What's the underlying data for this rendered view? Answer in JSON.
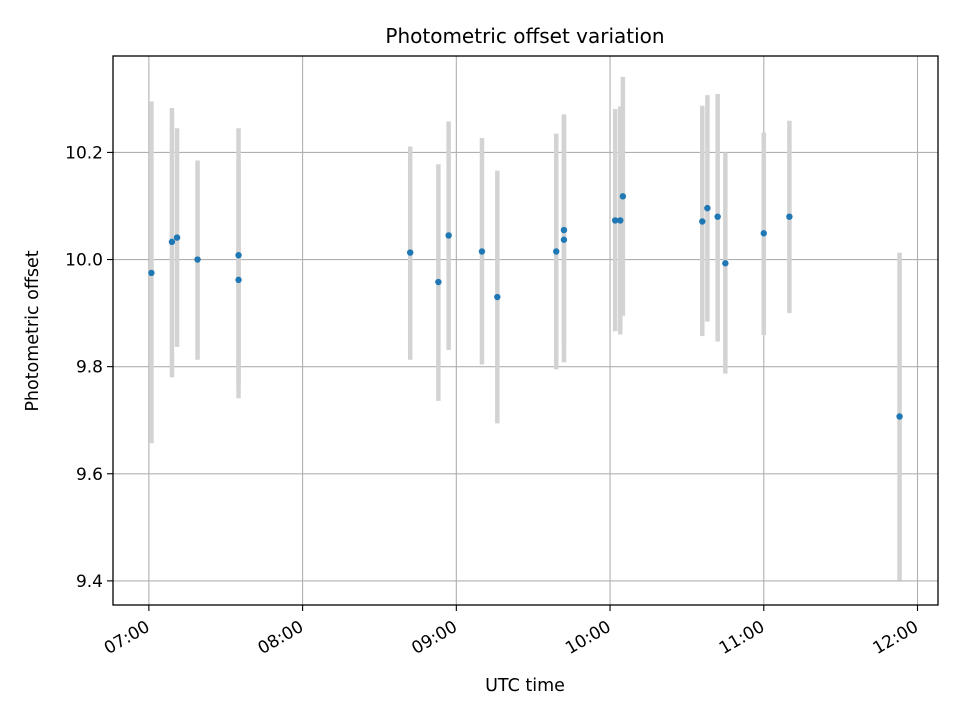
{
  "chart_data": {
    "type": "scatter",
    "title": "Photometric offset variation",
    "xlabel": "UTC time",
    "ylabel": "Photometric offset",
    "x_ticks": [
      "07:00",
      "08:00",
      "09:00",
      "10:00",
      "11:00",
      "12:00"
    ],
    "y_ticks": [
      "9.4",
      "9.6",
      "9.8",
      "10.0",
      "10.2"
    ],
    "xlim": [
      "06:46",
      "12:08"
    ],
    "ylim": [
      9.355,
      10.38
    ],
    "grid": true,
    "marker_color": "#1f77b4",
    "errorbar_color": "#d3d3d3",
    "points": [
      {
        "time": "07:01",
        "offset": 9.975,
        "err_low": 9.657,
        "err_high": 10.295
      },
      {
        "time": "07:09",
        "offset": 10.033,
        "err_low": 9.78,
        "err_high": 10.283
      },
      {
        "time": "07:11",
        "offset": 10.041,
        "err_low": 9.837,
        "err_high": 10.245
      },
      {
        "time": "07:19",
        "offset": 10.0,
        "err_low": 9.813,
        "err_high": 10.185
      },
      {
        "time": "07:35",
        "offset": 10.008,
        "err_low": 9.768,
        "err_high": 10.245
      },
      {
        "time": "07:35",
        "offset": 9.962,
        "err_low": 9.741,
        "err_high": 10.183
      },
      {
        "time": "08:42",
        "offset": 10.013,
        "err_low": 9.813,
        "err_high": 10.211
      },
      {
        "time": "08:53",
        "offset": 9.958,
        "err_low": 9.736,
        "err_high": 10.178
      },
      {
        "time": "08:57",
        "offset": 10.045,
        "err_low": 9.831,
        "err_high": 10.258
      },
      {
        "time": "09:10",
        "offset": 10.015,
        "err_low": 9.804,
        "err_high": 10.227
      },
      {
        "time": "09:16",
        "offset": 9.93,
        "err_low": 9.694,
        "err_high": 10.166
      },
      {
        "time": "09:39",
        "offset": 10.015,
        "err_low": 9.795,
        "err_high": 10.235
      },
      {
        "time": "09:42",
        "offset": 10.055,
        "err_low": 9.841,
        "err_high": 10.271
      },
      {
        "time": "09:42",
        "offset": 10.037,
        "err_low": 9.808,
        "err_high": 10.266
      },
      {
        "time": "10:02",
        "offset": 10.073,
        "err_low": 9.866,
        "err_high": 10.281
      },
      {
        "time": "10:04",
        "offset": 10.073,
        "err_low": 9.86,
        "err_high": 10.286
      },
      {
        "time": "10:05",
        "offset": 10.118,
        "err_low": 9.895,
        "err_high": 10.341
      },
      {
        "time": "10:36",
        "offset": 10.071,
        "err_low": 9.857,
        "err_high": 10.287
      },
      {
        "time": "10:38",
        "offset": 10.096,
        "err_low": 9.884,
        "err_high": 10.307
      },
      {
        "time": "10:42",
        "offset": 10.08,
        "err_low": 9.847,
        "err_high": 10.309
      },
      {
        "time": "10:45",
        "offset": 9.993,
        "err_low": 9.787,
        "err_high": 10.2
      },
      {
        "time": "11:00",
        "offset": 10.049,
        "err_low": 9.859,
        "err_high": 10.237
      },
      {
        "time": "11:10",
        "offset": 10.08,
        "err_low": 9.9,
        "err_high": 10.259
      },
      {
        "time": "11:53",
        "offset": 9.707,
        "err_low": 9.401,
        "err_high": 10.013
      }
    ]
  }
}
